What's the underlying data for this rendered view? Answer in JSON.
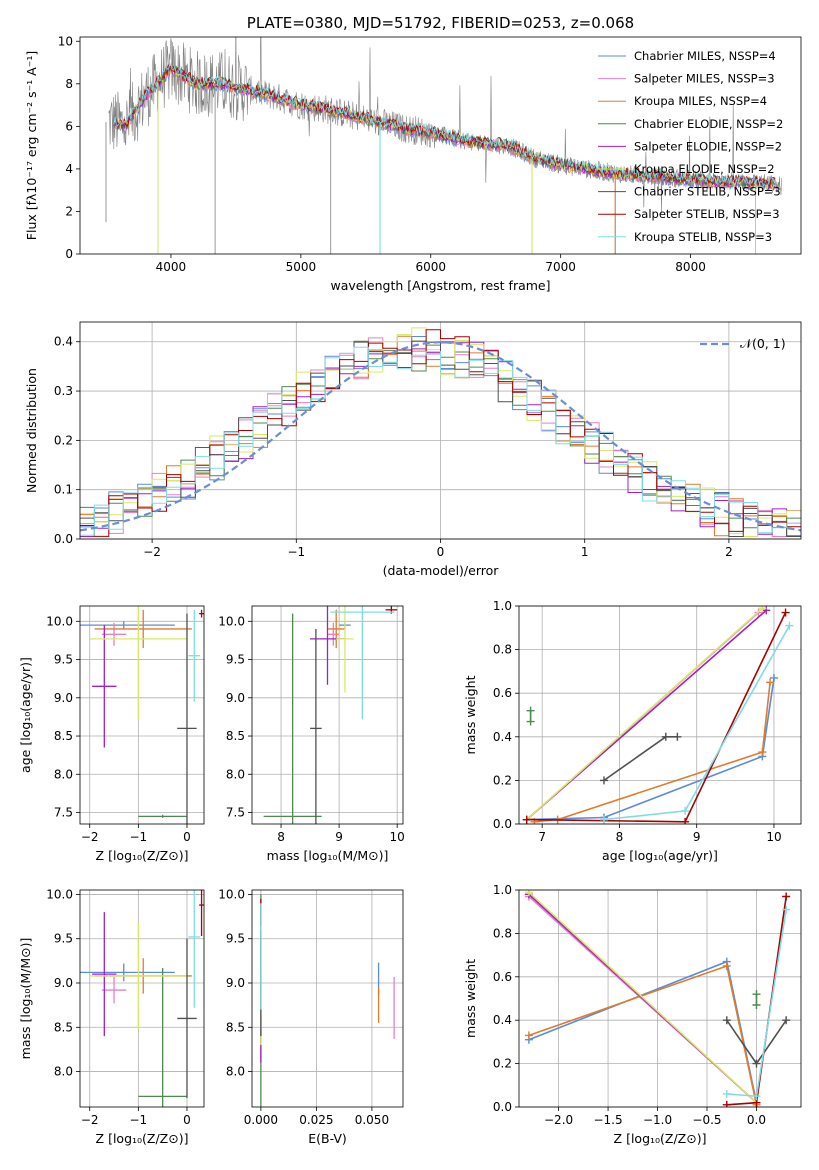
{
  "colors": {
    "chabrier_miles": "#5b8bd9",
    "salpeter_miles": "#e77fc6",
    "kroupa_miles": "#e07b2c",
    "chabrier_elodie": "#4f8a4f",
    "salpeter_elodie": "#a020c8",
    "kroupa_elodie": "#d8e866",
    "chabrier_stelib": "#505050",
    "salpeter_stelib": "#aa0000",
    "kroupa_stelib": "#7ddde4",
    "data": "#808080",
    "normal": "#6a8fd4"
  },
  "chart_data": [
    {
      "id": "spectrum",
      "type": "line",
      "title": "PLATE=0380, MJD=51792, FIBERID=0253, z=0.068",
      "xlabel": "wavelength [Angstrom, rest frame]",
      "ylabel": "Flux [fλ10⁻¹⁷ erg cm⁻² s⁻¹ A⁻¹]",
      "xlim": [
        3300,
        8850
      ],
      "ylim": [
        0,
        10.2
      ],
      "xticks": [
        4000,
        5000,
        6000,
        7000,
        8000
      ],
      "yticks": [
        0,
        2,
        4,
        6,
        8,
        10
      ],
      "legend_position": "right",
      "legend": [
        {
          "text": "Chabrier MILES, NSSP=4",
          "color": "chabrier_miles"
        },
        {
          "text": "Salpeter MILES, NSSP=3",
          "color": "salpeter_miles"
        },
        {
          "text": "Kroupa MILES, NSSP=4",
          "color": "kroupa_miles"
        },
        {
          "text": "Chabrier ELODIE, NSSP=2",
          "color": "chabrier_elodie"
        },
        {
          "text": "Salpeter ELODIE, NSSP=2",
          "color": "salpeter_elodie"
        },
        {
          "text": "Kroupa ELODIE, NSSP=2",
          "color": "kroupa_elodie"
        },
        {
          "text": "Chabrier STELIB, NSSP=3",
          "color": "chabrier_stelib"
        },
        {
          "text": "Salpeter STELIB, NSSP=3",
          "color": "salpeter_stelib"
        },
        {
          "text": "Kroupa STELIB, NSSP=3",
          "color": "kroupa_stelib"
        }
      ],
      "continuum_x": [
        3550,
        3650,
        3800,
        4000,
        4200,
        4400,
        4600,
        4800,
        5000,
        5200,
        5400,
        5600,
        5800,
        6000,
        6200,
        6400,
        6600,
        6800,
        7000,
        7200,
        7400,
        7600,
        7800,
        8000,
        8200,
        8400,
        8600,
        8700
      ],
      "continuum_y": [
        6.2,
        6.0,
        7.4,
        8.7,
        8.0,
        8.0,
        7.7,
        7.4,
        7.0,
        6.8,
        6.5,
        6.2,
        5.9,
        5.7,
        5.4,
        5.2,
        5.1,
        4.5,
        4.2,
        4.0,
        3.8,
        3.7,
        3.6,
        3.5,
        3.4,
        3.4,
        3.3,
        3.2
      ],
      "spikes": [
        {
          "x": 3500,
          "y": 1.5
        },
        {
          "x": 3900,
          "y": 0.0
        },
        {
          "x": 4340,
          "y": 0.0
        },
        {
          "x": 5230,
          "y": 0.0
        },
        {
          "x": 5610,
          "y": 0.0
        },
        {
          "x": 6780,
          "y": 0.0
        },
        {
          "x": 7420,
          "y": 0.0
        },
        {
          "x": 8500,
          "y": 2.2
        }
      ]
    },
    {
      "id": "residuals",
      "type": "histogram",
      "xlabel": "(data-model)/error",
      "ylabel": "Normed distribution",
      "xlim": [
        -2.5,
        2.5
      ],
      "ylim": [
        0,
        0.44
      ],
      "xticks": [
        -2,
        -1,
        0,
        1,
        2
      ],
      "yticks": [
        0.0,
        0.1,
        0.2,
        0.3,
        0.4
      ],
      "grid": true,
      "legend_position": "top-right",
      "legend": [
        {
          "text": "𝒩(0, 1)",
          "color": "normal"
        }
      ],
      "bin_width": 0.1
    },
    {
      "id": "age_Z",
      "type": "error_bars",
      "xlabel": "Z [log₁₀(Z/Z⊙)]",
      "ylabel": "age  [log₁₀(age/yr)]",
      "xlim": [
        -2.2,
        0.35
      ],
      "ylim": [
        7.35,
        10.2
      ],
      "xticks": [
        -2,
        -1,
        0
      ],
      "yticks": [
        7.5,
        8.0,
        8.5,
        9.0,
        9.5,
        10.0
      ],
      "grid": true,
      "bars": [
        {
          "c": "chabrier_miles",
          "x": -1.3,
          "y": 9.95,
          "xe": 1.05,
          "ye": 0.05
        },
        {
          "c": "salpeter_miles",
          "x": -1.5,
          "y": 9.83,
          "xe": 0.25,
          "ye": 0.15
        },
        {
          "c": "kroupa_miles",
          "x": -0.9,
          "y": 9.9,
          "xe": 1.0,
          "ye": 0.25
        },
        {
          "c": "chabrier_elodie",
          "x": -0.5,
          "y": 7.45,
          "xe": 0.5,
          "ye": 0.02
        },
        {
          "c": "salpeter_elodie",
          "x": -1.7,
          "y": 9.15,
          "xe": 0.25,
          "ye": 0.8
        },
        {
          "c": "kroupa_elodie",
          "x": -1.0,
          "y": 9.77,
          "xe": 1.0,
          "ye": 1.05
        },
        {
          "c": "chabrier_stelib",
          "x": 0.0,
          "y": 8.6,
          "xe": 0.2,
          "ye": 1.5
        },
        {
          "c": "salpeter_stelib",
          "x": 0.3,
          "y": 10.1,
          "xe": 0.05,
          "ye": 0.05
        },
        {
          "c": "kroupa_stelib",
          "x": 0.15,
          "y": 9.55,
          "xe": 0.12,
          "ye": 0.6
        }
      ]
    },
    {
      "id": "age_mass",
      "type": "error_bars",
      "xlabel": "mass [log₁₀(M/M⊙)]",
      "xlim": [
        7.5,
        10.1
      ],
      "ylim": [
        7.35,
        10.2
      ],
      "xticks": [
        8,
        9,
        10
      ],
      "yticks": [
        7.5,
        8.0,
        8.5,
        9.0,
        9.5,
        10.0
      ],
      "grid": true,
      "bars": [
        {
          "c": "chabrier_miles",
          "x": 9.1,
          "y": 9.95,
          "xe": 0.1,
          "ye": 0.05
        },
        {
          "c": "salpeter_miles",
          "x": 8.9,
          "y": 9.83,
          "xe": 0.1,
          "ye": 0.15
        },
        {
          "c": "kroupa_miles",
          "x": 8.95,
          "y": 9.9,
          "xe": 0.15,
          "ye": 0.25
        },
        {
          "c": "chabrier_elodie",
          "x": 8.2,
          "y": 7.45,
          "xe": 0.5,
          "ye": 2.65
        },
        {
          "c": "salpeter_elodie",
          "x": 8.8,
          "y": 9.77,
          "xe": 0.3,
          "ye": 0.6
        },
        {
          "c": "kroupa_elodie",
          "x": 9.1,
          "y": 9.77,
          "xe": 0.15,
          "ye": 0.7
        },
        {
          "c": "chabrier_stelib",
          "x": 8.6,
          "y": 8.6,
          "xe": 0.1,
          "ye": 1.3
        },
        {
          "c": "salpeter_stelib",
          "x": 9.9,
          "y": 10.15,
          "xe": 0.1,
          "ye": 0.05
        },
        {
          "c": "kroupa_stelib",
          "x": 9.4,
          "y": 10.12,
          "xe": 0.55,
          "ye": 1.4
        }
      ]
    },
    {
      "id": "weight_age",
      "type": "line",
      "xlabel": "age  [log₁₀(age/yr)]",
      "ylabel": "mass weight",
      "xlim": [
        6.7,
        10.35
      ],
      "ylim": [
        0,
        1.0
      ],
      "xticks": [
        7,
        8,
        9,
        10
      ],
      "yticks": [
        0.0,
        0.2,
        0.4,
        0.6,
        0.8,
        1.0
      ],
      "grid": true,
      "series": [
        {
          "c": "chabrier_miles",
          "x": [
            6.8,
            7.8,
            9.85,
            10.0
          ],
          "y": [
            0.02,
            0.03,
            0.31,
            0.67
          ]
        },
        {
          "c": "salpeter_miles",
          "x": [
            6.8,
            9.8
          ],
          "y": [
            0.02,
            0.97
          ]
        },
        {
          "c": "kroupa_miles",
          "x": [
            6.9,
            7.2,
            9.85,
            9.95
          ],
          "y": [
            0.01,
            0.02,
            0.33,
            0.65
          ]
        },
        {
          "c": "chabrier_elodie",
          "x": [
            6.85,
            6.85
          ],
          "y": [
            0.47,
            0.52
          ]
        },
        {
          "c": "salpeter_elodie",
          "x": [
            6.8,
            9.9
          ],
          "y": [
            0.02,
            0.98
          ]
        },
        {
          "c": "kroupa_elodie",
          "x": [
            6.8,
            9.85
          ],
          "y": [
            0.02,
            0.99
          ]
        },
        {
          "c": "chabrier_stelib",
          "x": [
            7.8,
            8.6,
            8.75
          ],
          "y": [
            0.2,
            0.4,
            0.4
          ]
        },
        {
          "c": "salpeter_stelib",
          "x": [
            6.8,
            8.85,
            10.15
          ],
          "y": [
            0.02,
            0.01,
            0.97
          ]
        },
        {
          "c": "kroupa_stelib",
          "x": [
            7.8,
            8.85,
            10.2
          ],
          "y": [
            0.02,
            0.06,
            0.91
          ]
        }
      ]
    },
    {
      "id": "mass_Z",
      "type": "error_bars",
      "xlabel": "Z [log₁₀(Z/Z⊙)]",
      "ylabel": "mass [log₁₀(M/M⊙)]",
      "xlim": [
        -2.2,
        0.35
      ],
      "ylim": [
        7.6,
        10.05
      ],
      "xticks": [
        -2,
        -1,
        0
      ],
      "yticks": [
        8.0,
        8.5,
        9.0,
        9.5,
        10.0
      ],
      "grid": true,
      "bars": [
        {
          "c": "chabrier_miles",
          "x": -1.3,
          "y": 9.12,
          "xe": 1.05,
          "ye": 0.1
        },
        {
          "c": "salpeter_miles",
          "x": -1.5,
          "y": 8.92,
          "xe": 0.25,
          "ye": 0.15
        },
        {
          "c": "kroupa_miles",
          "x": -0.9,
          "y": 9.08,
          "xe": 1.0,
          "ye": 0.2
        },
        {
          "c": "chabrier_elodie",
          "x": -0.5,
          "y": 7.72,
          "xe": 0.5,
          "ye": 1.45
        },
        {
          "c": "salpeter_elodie",
          "x": -1.7,
          "y": 9.1,
          "xe": 0.25,
          "ye": 0.7
        },
        {
          "c": "kroupa_elodie",
          "x": -1.0,
          "y": 9.08,
          "xe": 1.0,
          "ye": 0.6
        },
        {
          "c": "chabrier_stelib",
          "x": 0.0,
          "y": 8.6,
          "xe": 0.2,
          "ye": 0.9
        },
        {
          "c": "salpeter_stelib",
          "x": 0.3,
          "y": 9.88,
          "xe": 0.05,
          "ye": 0.35
        },
        {
          "c": "kroupa_stelib",
          "x": 0.15,
          "y": 9.52,
          "xe": 0.12,
          "ye": 0.8
        }
      ]
    },
    {
      "id": "mass_ebv",
      "type": "error_bars",
      "xlabel": "E(B-V)",
      "xlim": [
        -0.004,
        0.064
      ],
      "ylim": [
        7.6,
        10.05
      ],
      "xticks": [
        0.0,
        0.025,
        0.05
      ],
      "xtick_labels": [
        "0.000",
        "0.025",
        "0.050"
      ],
      "yticks": [
        8.0,
        8.5,
        9.0,
        9.5,
        10.0
      ],
      "grid": true,
      "bars": [
        {
          "c": "chabrier_miles",
          "x": 0.053,
          "y": 9.05,
          "xe": 0.0,
          "ye": 0.18
        },
        {
          "c": "salpeter_miles",
          "x": 0.06,
          "y": 8.72,
          "xe": 0.0,
          "ye": 0.35
        },
        {
          "c": "kroupa_miles",
          "x": 0.053,
          "y": 8.75,
          "xe": 0.0,
          "ye": 0.2
        },
        {
          "c": "chabrier_elodie",
          "x": 0.0,
          "y": 8.8,
          "xe": 0.0,
          "ye": 1.2
        },
        {
          "c": "salpeter_elodie",
          "x": 0.0,
          "y": 8.3,
          "xe": 0.0,
          "ye": 0.2
        },
        {
          "c": "kroupa_elodie",
          "x": 0.0,
          "y": 8.7,
          "xe": 0.0,
          "ye": 0.4
        },
        {
          "c": "chabrier_stelib",
          "x": 0.0,
          "y": 9.0,
          "xe": 0.0,
          "ye": 0.6
        },
        {
          "c": "salpeter_stelib",
          "x": 0.0,
          "y": 9.8,
          "xe": 0.0,
          "ye": 0.15
        },
        {
          "c": "kroupa_stelib",
          "x": 0.0,
          "y": 9.3,
          "xe": 0.0,
          "ye": 0.6
        }
      ]
    },
    {
      "id": "weight_Z",
      "type": "line",
      "xlabel": "Z [log₁₀(Z/Z⊙)]",
      "ylabel": "mass weight",
      "xlim": [
        -2.4,
        0.45
      ],
      "ylim": [
        0,
        1.0
      ],
      "xticks": [
        -2.0,
        -1.5,
        -1.0,
        -0.5,
        0.0
      ],
      "xtick_labels": [
        "−2.0",
        "−1.5",
        "−1.0",
        "−0.5",
        "0.0"
      ],
      "yticks": [
        0.0,
        0.2,
        0.4,
        0.6,
        0.8,
        1.0
      ],
      "grid": true,
      "series": [
        {
          "c": "chabrier_miles",
          "x": [
            -2.3,
            -0.3,
            0.0
          ],
          "y": [
            0.31,
            0.67,
            0.02
          ]
        },
        {
          "c": "salpeter_miles",
          "x": [
            -2.3,
            0.0
          ],
          "y": [
            0.97,
            0.02
          ]
        },
        {
          "c": "kroupa_miles",
          "x": [
            -2.3,
            -0.3,
            0.0
          ],
          "y": [
            0.33,
            0.65,
            0.01
          ]
        },
        {
          "c": "chabrier_elodie",
          "x": [
            0.0,
            0.0
          ],
          "y": [
            0.47,
            0.52
          ]
        },
        {
          "c": "salpeter_elodie",
          "x": [
            -2.3,
            0.0
          ],
          "y": [
            0.98,
            0.02
          ]
        },
        {
          "c": "kroupa_elodie",
          "x": [
            -2.3,
            0.0
          ],
          "y": [
            0.99,
            0.02
          ]
        },
        {
          "c": "chabrier_stelib",
          "x": [
            -0.3,
            0.0,
            0.3
          ],
          "y": [
            0.4,
            0.2,
            0.4
          ]
        },
        {
          "c": "salpeter_stelib",
          "x": [
            -0.3,
            0.0,
            0.3
          ],
          "y": [
            0.01,
            0.02,
            0.97
          ]
        },
        {
          "c": "kroupa_stelib",
          "x": [
            -0.3,
            0.0,
            0.3
          ],
          "y": [
            0.06,
            0.05,
            0.91
          ]
        }
      ]
    }
  ]
}
